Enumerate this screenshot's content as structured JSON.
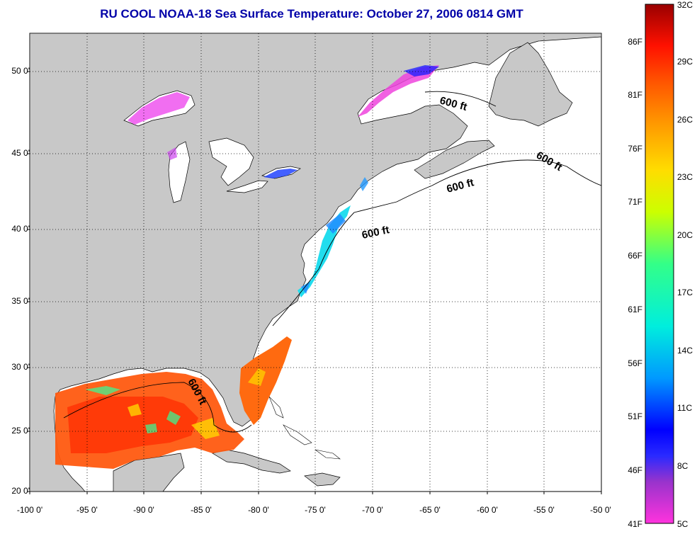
{
  "title": "RU COOL  NOAA-18  Sea Surface Temperature:  October 27, 2006 0814 GMT",
  "map": {
    "lat_labels": [
      "50 0'",
      "45 0'",
      "40 0'",
      "35 0'",
      "30 0'",
      "25 0'",
      "20 0'"
    ],
    "lon_labels": [
      "-100 0'",
      "-95 0'",
      "-90 0'",
      "-85 0'",
      "-80 0'",
      "-75 0'",
      "-70 0'",
      "-65 0'",
      "-60 0'",
      "-55 0'",
      "-50 0'"
    ],
    "lat_range": [
      20,
      52.5
    ],
    "lon_range": [
      -100,
      -50
    ],
    "isobath_labels": [
      "600 ft",
      "600 ft",
      "600 ft",
      "600 ft",
      "600 ft"
    ],
    "land_color": "#c8c8c8",
    "water_color": "#ffffff"
  },
  "colorbar": {
    "f_labels": [
      "86F",
      "81F",
      "76F",
      "71F",
      "66F",
      "61F",
      "56F",
      "51F",
      "46F",
      "41F"
    ],
    "c_labels": [
      "32C",
      "29C",
      "26C",
      "23C",
      "20C",
      "17C",
      "14C",
      "11C",
      "8C",
      "5C"
    ],
    "range_c": [
      5,
      32
    ]
  }
}
